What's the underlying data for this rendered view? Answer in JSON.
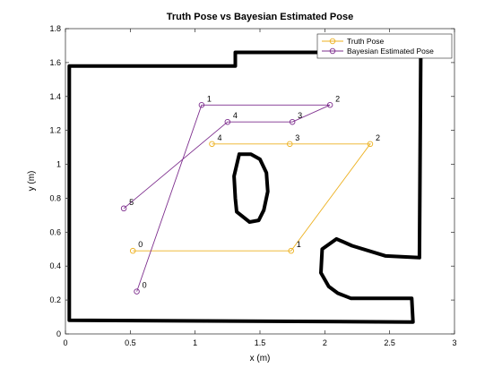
{
  "chart_data": {
    "type": "line",
    "title": "Truth Pose vs Bayesian Estimated Pose",
    "xlabel": "x (m)",
    "ylabel": "y (m)",
    "xlim": [
      0,
      3
    ],
    "ylim": [
      0,
      1.8
    ],
    "xticks": [
      "0",
      "0.5",
      "1",
      "1.5",
      "2",
      "2.5",
      "3"
    ],
    "yticks": [
      "0",
      "0.2",
      "0.4",
      "0.6",
      "0.8",
      "1",
      "1.2",
      "1.4",
      "1.6",
      "1.8"
    ],
    "grid": false,
    "legend_position": "top-right",
    "series": [
      {
        "name": "Truth Pose",
        "color": "#EDB120",
        "marker": "circle",
        "x": [
          0.52,
          1.74,
          2.35,
          1.73,
          1.13
        ],
        "y": [
          0.49,
          0.49,
          1.12,
          1.12,
          1.12
        ],
        "labels": [
          "0",
          "1",
          "2",
          "3",
          "4"
        ]
      },
      {
        "name": "Bayesian Estimated Pose",
        "color": "#7E2F8E",
        "marker": "circle",
        "x": [
          0.55,
          1.05,
          2.04,
          1.75,
          1.25,
          0.45
        ],
        "y": [
          0.25,
          1.35,
          1.35,
          1.25,
          1.25,
          0.74
        ],
        "labels": [
          "0",
          "1",
          "2",
          "3",
          "4",
          "5"
        ]
      }
    ],
    "map_outline": {
      "color": "#000000",
      "outer": [
        [
          0.03,
          1.58
        ],
        [
          1.31,
          1.58
        ],
        [
          1.31,
          1.66
        ],
        [
          2.74,
          1.66
        ],
        [
          2.73,
          0.45
        ],
        [
          2.47,
          0.46
        ],
        [
          2.21,
          0.52
        ],
        [
          2.09,
          0.56
        ],
        [
          1.98,
          0.5
        ],
        [
          1.97,
          0.36
        ],
        [
          2.03,
          0.28
        ],
        [
          2.1,
          0.24
        ],
        [
          2.2,
          0.21
        ],
        [
          2.67,
          0.21
        ],
        [
          2.68,
          0.07
        ],
        [
          0.03,
          0.08
        ],
        [
          0.03,
          1.58
        ]
      ],
      "inner": [
        [
          1.34,
          1.06
        ],
        [
          1.43,
          1.06
        ],
        [
          1.5,
          1.03
        ],
        [
          1.55,
          0.95
        ],
        [
          1.56,
          0.84
        ],
        [
          1.53,
          0.73
        ],
        [
          1.49,
          0.67
        ],
        [
          1.42,
          0.66
        ],
        [
          1.32,
          0.72
        ],
        [
          1.31,
          0.8
        ],
        [
          1.3,
          0.93
        ],
        [
          1.34,
          1.06
        ]
      ]
    }
  }
}
